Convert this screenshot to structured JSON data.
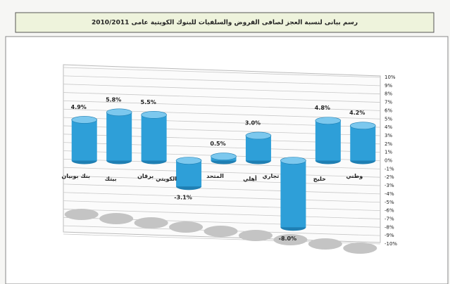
{
  "chart_data": {
    "type": "bar",
    "title": "رسم بيانى لنسبة العجز لصافى القروض والسلفيات للبنوك الكويتية عامى 2010/2011",
    "categories": [
      "بنك بوبيان",
      "بيتك",
      "برقان",
      "الكويتي",
      "المتحد",
      "أهلي",
      "تجاري",
      "خليج",
      "وطني"
    ],
    "values": [
      4.9,
      5.8,
      5.5,
      -3.1,
      0.5,
      3.0,
      -8.0,
      4.8,
      4.2
    ],
    "value_labels": [
      "4.9%",
      "5.8%",
      "5.5%",
      "-3.1%",
      "0.5%",
      "3.0%",
      "-8.0%",
      "4.8%",
      "4.2%"
    ],
    "color": "#2e9fd8",
    "ylim": [
      -10,
      10
    ],
    "yticks": [
      {
        "value": 10,
        "label": "10%"
      },
      {
        "value": 9,
        "label": "9%"
      },
      {
        "value": 8,
        "label": "8%"
      },
      {
        "value": 7,
        "label": "7%"
      },
      {
        "value": 6,
        "label": "6%"
      },
      {
        "value": 5,
        "label": "5%"
      },
      {
        "value": 4,
        "label": "4%"
      },
      {
        "value": 3,
        "label": "3%"
      },
      {
        "value": 2,
        "label": "2%"
      },
      {
        "value": 1,
        "label": "1%"
      },
      {
        "value": 0,
        "label": "0%"
      },
      {
        "value": -1,
        "label": "-1%"
      },
      {
        "value": -2,
        "label": "-2%"
      },
      {
        "value": -3,
        "label": "-3%"
      },
      {
        "value": -4,
        "label": "-4%"
      },
      {
        "value": -5,
        "label": "-5%"
      },
      {
        "value": -6,
        "label": "-6%"
      },
      {
        "value": -7,
        "label": "-7%"
      },
      {
        "value": -8,
        "label": "-8%"
      },
      {
        "value": -9,
        "label": "-9%"
      },
      {
        "value": -10,
        "label": "-10%"
      }
    ],
    "grid": true
  }
}
